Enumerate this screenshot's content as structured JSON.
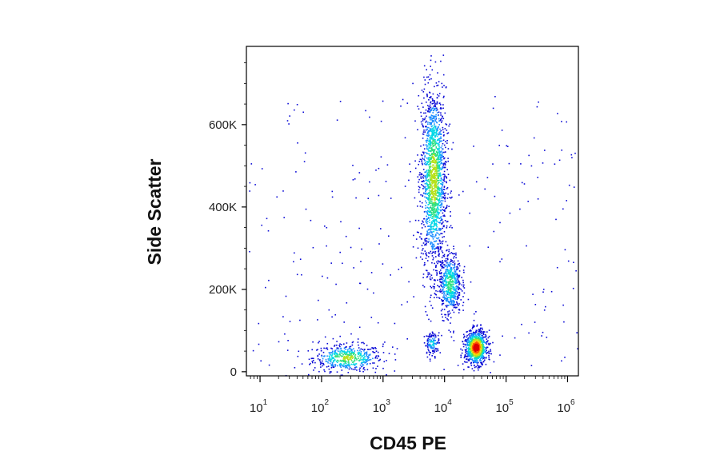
{
  "chart_data": {
    "type": "scatter",
    "title": "",
    "xlabel": "CD45 PE",
    "ylabel": "Side Scatter",
    "x_scale": "log",
    "xlim": [
      6,
      1500000
    ],
    "ylim": [
      -10000,
      790000
    ],
    "x_ticks": [
      {
        "base": "10",
        "exp": "1",
        "value": 10
      },
      {
        "base": "10",
        "exp": "2",
        "value": 100
      },
      {
        "base": "10",
        "exp": "3",
        "value": 1000
      },
      {
        "base": "10",
        "exp": "4",
        "value": 10000
      },
      {
        "base": "10",
        "exp": "5",
        "value": 100000
      },
      {
        "base": "10",
        "exp": "6",
        "value": 1000000
      }
    ],
    "y_ticks": [
      {
        "label": "0",
        "value": 0
      },
      {
        "label": "200K",
        "value": 200000
      },
      {
        "label": "400K",
        "value": 400000
      },
      {
        "label": "600K",
        "value": 600000
      }
    ],
    "grid": false,
    "legend": "none",
    "colormap": [
      "#0a0ad6",
      "#1a8cff",
      "#00d8e6",
      "#30e080",
      "#b6e21a",
      "#ffd400",
      "#ff5a00",
      "#e00000"
    ],
    "populations": [
      {
        "cd45_center": 260,
        "ssc_center": 35000,
        "cd45_spread_log10": 0.28,
        "ssc_spread": 16000,
        "weight": 0.12,
        "peak_density": 0.55
      },
      {
        "cd45_center": 6500,
        "ssc_center": 470000,
        "cd45_spread_log10": 0.1,
        "ssc_spread": 110000,
        "weight": 0.4,
        "peak_density": 0.6
      },
      {
        "cd45_center": 12000,
        "ssc_center": 215000,
        "cd45_spread_log10": 0.09,
        "ssc_spread": 38000,
        "weight": 0.14,
        "peak_density": 0.45
      },
      {
        "cd45_center": 32000,
        "ssc_center": 60000,
        "cd45_spread_log10": 0.09,
        "ssc_spread": 20000,
        "weight": 0.22,
        "peak_density": 1.0
      },
      {
        "cd45_center": 6200,
        "ssc_center": 70000,
        "cd45_spread_log10": 0.06,
        "ssc_spread": 14000,
        "weight": 0.03,
        "peak_density": 0.3
      }
    ]
  }
}
